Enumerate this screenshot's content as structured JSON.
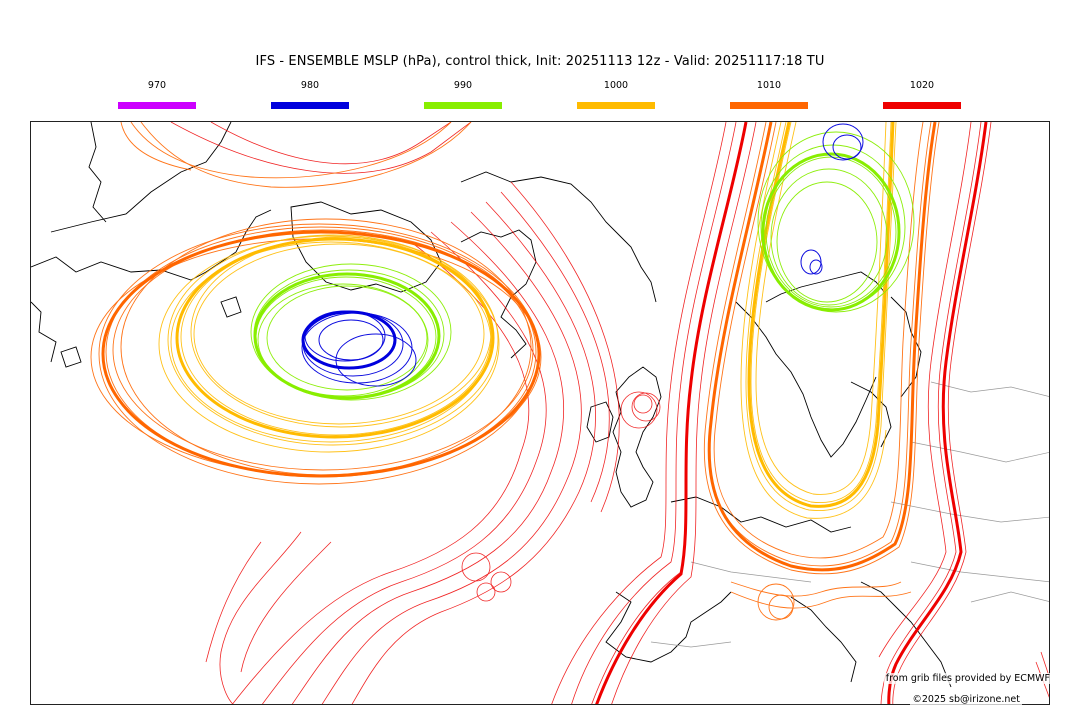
{
  "title": "IFS - ENSEMBLE MSLP (hPa), control thick, Init: 20251113 12z - Valid: 20251117:18 TU",
  "legend": [
    {
      "label": "970",
      "color": "#cc00ff"
    },
    {
      "label": "980",
      "color": "#0000dd"
    },
    {
      "label": "990",
      "color": "#88ee00"
    },
    {
      "label": "1000",
      "color": "#ffbb00"
    },
    {
      "label": "1010",
      "color": "#ff6600"
    },
    {
      "label": "1020",
      "color": "#ee0000"
    }
  ],
  "credit": "from grib files provided by ECMWF",
  "copyright": "©2025 sb@irizone.net"
}
